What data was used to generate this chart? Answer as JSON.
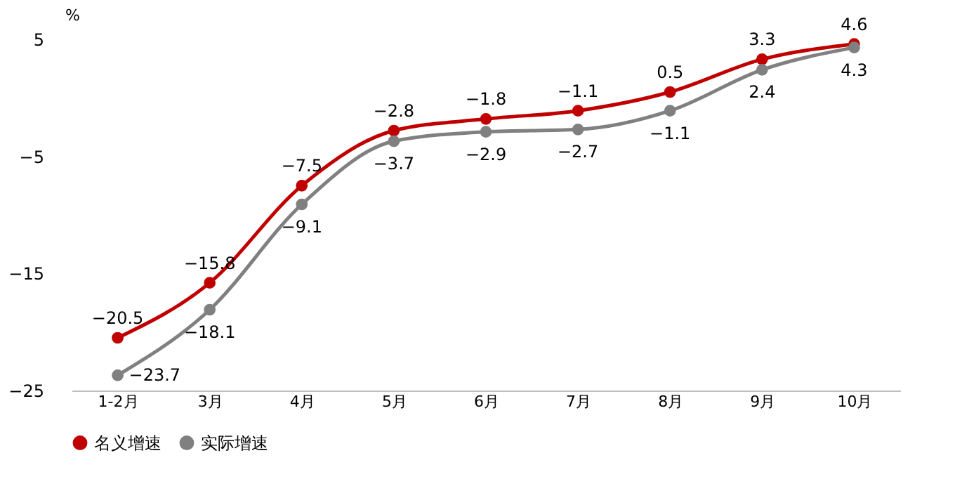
{
  "chart_data": {
    "type": "line",
    "ylabel": "%",
    "categories": [
      "1-2月",
      "3月",
      "4月",
      "5月",
      "6月",
      "7月",
      "8月",
      "9月",
      "10月"
    ],
    "series": [
      {
        "name": "名义增速",
        "color": "#c00000",
        "values": [
          -20.5,
          -15.8,
          -7.5,
          -2.8,
          -1.8,
          -1.1,
          0.5,
          3.3,
          4.6
        ]
      },
      {
        "name": "实际增速",
        "color": "#808080",
        "values": [
          -23.7,
          -18.1,
          -9.1,
          -3.7,
          -2.9,
          -2.7,
          -1.1,
          2.4,
          4.3
        ]
      }
    ],
    "ylim": [
      -25,
      5
    ],
    "yticks": [
      -25,
      -15,
      -5,
      5
    ],
    "data_labels": true,
    "marker": "circle",
    "legend": "bottom",
    "grid": false
  }
}
